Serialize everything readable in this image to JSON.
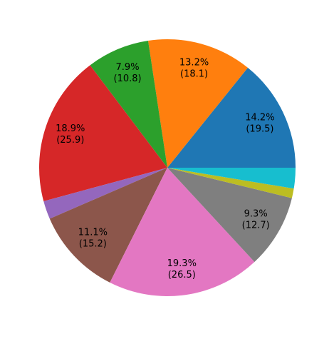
{
  "chart_data": {
    "type": "pie",
    "title": "",
    "start_angle_deg": 0,
    "direction": "counterclockwise",
    "slices": [
      {
        "percent": 14.2,
        "value": 19.5,
        "color": "#1f77b4",
        "label_lines": [
          "14.2%",
          "(19.5)"
        ]
      },
      {
        "percent": 13.2,
        "value": 18.1,
        "color": "#ff7f0e",
        "label_lines": [
          "13.2%",
          "(18.1)"
        ]
      },
      {
        "percent": 7.9,
        "value": 10.8,
        "color": "#2ca02c",
        "label_lines": [
          "7.9%",
          "(10.8)"
        ]
      },
      {
        "percent": 18.9,
        "value": 25.9,
        "color": "#d62728",
        "label_lines": [
          "18.9%",
          "(25.9)"
        ]
      },
      {
        "percent": 2.3,
        "value": 3.2,
        "color": "#9467bd",
        "label_lines": []
      },
      {
        "percent": 11.1,
        "value": 15.2,
        "color": "#8c564b",
        "label_lines": [
          "11.1%",
          "(15.2)"
        ]
      },
      {
        "percent": 19.3,
        "value": 26.5,
        "color": "#e377c2",
        "label_lines": [
          "19.3%",
          "(26.5)"
        ]
      },
      {
        "percent": 9.3,
        "value": 12.7,
        "color": "#7f7f7f",
        "label_lines": [
          "9.3%",
          "(12.7)"
        ]
      },
      {
        "percent": 1.2,
        "value": 1.6,
        "color": "#bcbd22",
        "label_lines": []
      },
      {
        "percent": 2.6,
        "value": 3.6,
        "color": "#17becf",
        "label_lines": []
      }
    ]
  }
}
